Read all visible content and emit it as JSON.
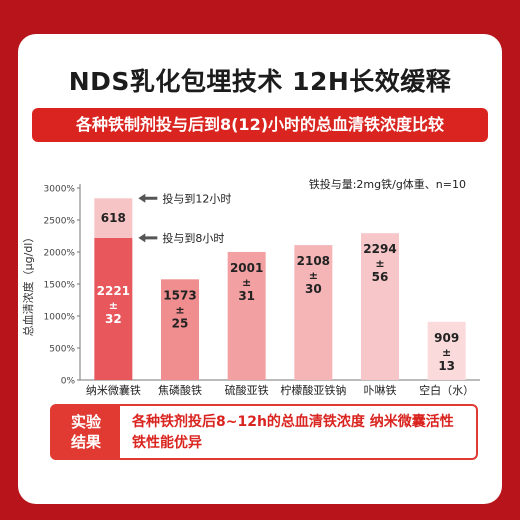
{
  "title": "NDS乳化包埋技术 12H长效缓释",
  "subtitle": "各种铁制剂投与后到8(12)小时的总血清铁浓度比较",
  "chart_data": {
    "type": "bar",
    "ylabel": "总血清浓度（μg/dl）",
    "ylim": [
      0,
      3000
    ],
    "yticks": [
      "0%",
      "500%",
      "1000%",
      "1500%",
      "2000%",
      "2500%",
      "3000%"
    ],
    "annotation": "铁投与量:2mg铁/g体重、n=10",
    "categories": [
      "纳米微囊铁",
      "焦磷酸铁",
      "硫酸亚铁",
      "柠檬酸亚铁钠",
      "卟啉铁",
      "空白（水）"
    ],
    "values": [
      2221,
      1573,
      2001,
      2108,
      2294,
      909
    ],
    "errors": [
      32,
      25,
      31,
      30,
      56,
      13
    ],
    "stack_extra": {
      "category": "纳米微囊铁",
      "value": 618
    },
    "labels": {
      "to12h": "投与到12小时",
      "to8h": "投与到8小时"
    },
    "colors": {
      "nano_base": "#e8575c",
      "nano_top": "#f7c4c6",
      "bars": [
        "#f08d8e",
        "#f3a0a2",
        "#f5b5b7",
        "#f7c6c8",
        "#fadadb"
      ]
    }
  },
  "conclusion": {
    "label": "实验结果",
    "text": "各种铁剂投后8~12h的总血清铁浓度 纳米微囊活性铁性能优异"
  }
}
